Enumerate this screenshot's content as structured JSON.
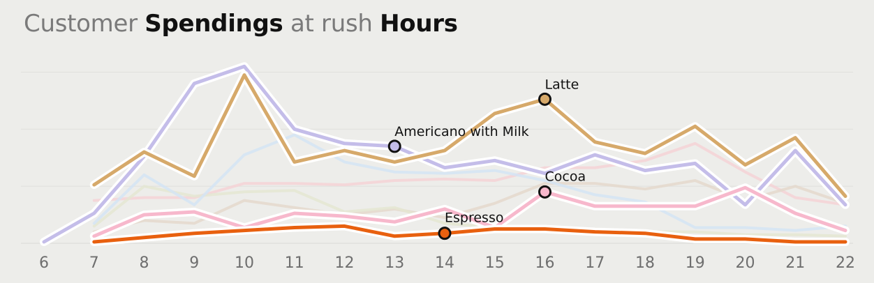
{
  "chart_data": {
    "type": "line",
    "title_parts": [
      "Customer ",
      "Spendings",
      " at rush ",
      "Hours"
    ],
    "xlabel": "",
    "ylabel": "",
    "x": [
      6,
      7,
      8,
      9,
      10,
      11,
      12,
      13,
      14,
      15,
      16,
      17,
      18,
      19,
      20,
      21,
      22
    ],
    "ylim": [
      0,
      130
    ],
    "grid": true,
    "series": [
      {
        "name": "",
        "color": "#f4d2d6",
        "highlighted": false,
        "values": [
          null,
          30,
          32,
          32,
          42,
          42,
          41,
          44,
          45,
          44,
          53,
          53,
          58,
          70,
          50,
          32,
          27
        ]
      },
      {
        "name": "",
        "color": "#e4d8cc",
        "highlighted": false,
        "values": [
          null,
          8,
          16,
          14,
          30,
          25,
          20,
          24,
          18,
          28,
          42,
          42,
          38,
          44,
          30,
          40,
          28
        ]
      },
      {
        "name": "",
        "color": "#e4e6d2",
        "highlighted": false,
        "values": [
          null,
          12,
          40,
          33,
          36,
          37,
          22,
          25,
          14,
          11,
          10,
          10,
          8,
          8,
          6,
          6,
          5
        ]
      },
      {
        "name": "",
        "color": "#d3e4f4",
        "highlighted": false,
        "values": [
          null,
          14,
          48,
          27,
          62,
          76,
          57,
          50,
          49,
          51,
          44,
          34,
          29,
          11,
          11,
          9,
          12
        ]
      },
      {
        "name": "Americano with Milk",
        "color": "#c4bde9",
        "highlighted": true,
        "values": [
          1,
          21,
          61,
          112,
          124,
          80,
          70,
          68,
          53,
          58,
          49,
          62,
          51,
          56,
          27,
          65,
          27
        ]
      },
      {
        "name": "Latte",
        "color": "#d6a96a",
        "highlighted": true,
        "values": [
          null,
          41,
          64,
          47,
          118,
          57,
          65,
          57,
          65,
          91,
          101,
          71,
          63,
          82,
          55,
          74,
          33
        ]
      },
      {
        "name": "Cocoa",
        "color": "#f7b8cc",
        "highlighted": true,
        "values": [
          null,
          5,
          20,
          22,
          11,
          21,
          19,
          15,
          24,
          11,
          36,
          26,
          26,
          26,
          39,
          21,
          9
        ]
      },
      {
        "name": "Espresso",
        "color": "#e8600f",
        "highlighted": true,
        "values": [
          null,
          1,
          4,
          7,
          9,
          11,
          12,
          5,
          7,
          10,
          10,
          8,
          7,
          3,
          3,
          1,
          1
        ]
      }
    ],
    "annotations": [
      {
        "label": "Latte",
        "series": "Latte",
        "x": 16
      },
      {
        "label": "Americano with Milk",
        "series": "Americano with Milk",
        "x": 13
      },
      {
        "label": "Cocoa",
        "series": "Cocoa",
        "x": 16
      },
      {
        "label": "Espresso",
        "series": "Espresso",
        "x": 14
      }
    ]
  }
}
